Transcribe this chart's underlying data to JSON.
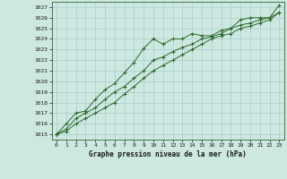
{
  "title": "Graphe pression niveau de la mer (hPa)",
  "bg_color": "#cce8e0",
  "grid_color": "#aacccc",
  "line_color": "#2d6a2d",
  "xlim": [
    -0.5,
    23.5
  ],
  "ylim": [
    1014.5,
    1027.5
  ],
  "xticks": [
    0,
    1,
    2,
    3,
    4,
    5,
    6,
    7,
    8,
    9,
    10,
    11,
    12,
    13,
    14,
    15,
    16,
    17,
    18,
    19,
    20,
    21,
    22,
    23
  ],
  "yticks": [
    1015,
    1016,
    1017,
    1018,
    1019,
    1020,
    1021,
    1022,
    1023,
    1024,
    1025,
    1026,
    1027
  ],
  "series1_x": [
    0,
    1,
    2,
    3,
    4,
    5,
    6,
    7,
    8,
    9,
    10,
    11,
    12,
    13,
    14,
    15,
    16,
    17,
    18,
    19,
    20,
    21,
    22,
    23
  ],
  "series1_y": [
    1015.0,
    1016.0,
    1017.0,
    1017.2,
    1018.3,
    1019.2,
    1019.8,
    1020.8,
    1021.8,
    1023.1,
    1024.0,
    1023.5,
    1024.0,
    1024.0,
    1024.5,
    1024.3,
    1024.3,
    1024.8,
    1025.0,
    1025.8,
    1026.0,
    1026.0,
    1026.0,
    1027.2
  ],
  "series2_x": [
    0,
    1,
    2,
    3,
    4,
    5,
    6,
    7,
    8,
    9,
    10,
    11,
    12,
    13,
    14,
    15,
    16,
    17,
    18,
    19,
    20,
    21,
    22,
    23
  ],
  "series2_y": [
    1015.0,
    1015.5,
    1016.5,
    1017.0,
    1017.5,
    1018.3,
    1019.0,
    1019.5,
    1020.3,
    1021.0,
    1022.0,
    1022.3,
    1022.8,
    1023.2,
    1023.5,
    1024.0,
    1024.2,
    1024.5,
    1025.0,
    1025.3,
    1025.5,
    1025.8,
    1026.0,
    1026.5
  ],
  "series3_x": [
    0,
    1,
    2,
    3,
    4,
    5,
    6,
    7,
    8,
    9,
    10,
    11,
    12,
    13,
    14,
    15,
    16,
    17,
    18,
    19,
    20,
    21,
    22,
    23
  ],
  "series3_y": [
    1015.0,
    1015.3,
    1016.0,
    1016.5,
    1017.0,
    1017.5,
    1018.0,
    1018.8,
    1019.5,
    1020.3,
    1021.0,
    1021.5,
    1022.0,
    1022.5,
    1023.0,
    1023.5,
    1024.0,
    1024.3,
    1024.5,
    1025.0,
    1025.2,
    1025.5,
    1025.8,
    1026.5
  ]
}
